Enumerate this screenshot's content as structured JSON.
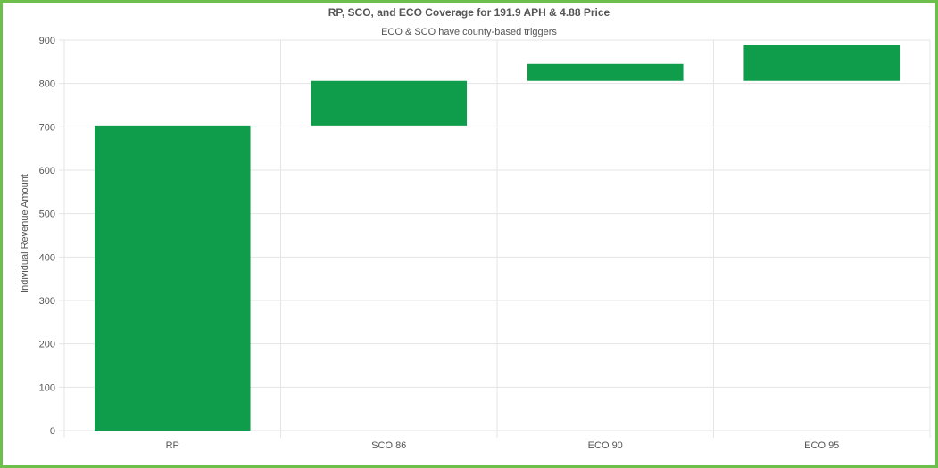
{
  "chart_data": {
    "type": "bar",
    "subtype": "floating-bar",
    "title": "RP, SCO, and ECO Coverage for 191.9 APH & 4.88 Price",
    "subtitle": "ECO & SCO have county-based triggers",
    "xlabel": "",
    "ylabel": "Individual Revenue Amount",
    "categories": [
      "RP",
      "SCO 86",
      "ECO 90",
      "ECO 95"
    ],
    "series": [
      {
        "values": [
          [
            0,
            703
          ],
          [
            703,
            806
          ],
          [
            806,
            845
          ],
          [
            806,
            889
          ]
        ],
        "color": "#0f9d4c"
      }
    ],
    "ylim": [
      0,
      900
    ],
    "yticks": [
      0,
      100,
      200,
      300,
      400,
      500,
      600,
      700,
      800,
      900
    ],
    "grid": true,
    "legend": "none"
  },
  "colors": {
    "bar": "#0f9d4c",
    "frame": "#6cbf4a",
    "grid": "#e5e5e5",
    "text": "#555555"
  }
}
